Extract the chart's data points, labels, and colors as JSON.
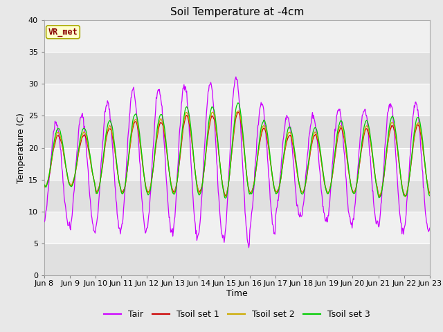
{
  "title": "Soil Temperature at -4cm",
  "xlabel": "Time",
  "ylabel": "Temperature (C)",
  "ylim": [
    0,
    40
  ],
  "yticks": [
    0,
    5,
    10,
    15,
    20,
    25,
    30,
    35,
    40
  ],
  "fig_facecolor": "#e8e8e8",
  "plot_facecolor": "#f0f0f0",
  "line_colors": {
    "Tair": "#cc00ff",
    "Tsoil1": "#cc0000",
    "Tsoil2": "#ccaa00",
    "Tsoil3": "#00cc00"
  },
  "legend_labels": [
    "Tair",
    "Tsoil set 1",
    "Tsoil set 2",
    "Tsoil set 3"
  ],
  "annotation_text": "VR_met",
  "annotation_color": "#880000",
  "annotation_bg": "#ffffcc",
  "annotation_edge": "#aaaa00",
  "x_tick_labels": [
    "Jun 8",
    "Jun 9",
    "Jun 10",
    "Jun 11",
    "Jun 12",
    "Jun 13",
    "Jun 14",
    "Jun 15",
    "Jun 16",
    "Jun 17",
    "Jun 18",
    "Jun 19",
    "Jun 20",
    "Jun 21",
    "Jun 22",
    "Jun 23"
  ],
  "title_fontsize": 11,
  "axis_label_fontsize": 9,
  "tick_label_fontsize": 8,
  "legend_fontsize": 9,
  "grid_color": "#ffffff",
  "alt_band_color": "#e0e0e0"
}
